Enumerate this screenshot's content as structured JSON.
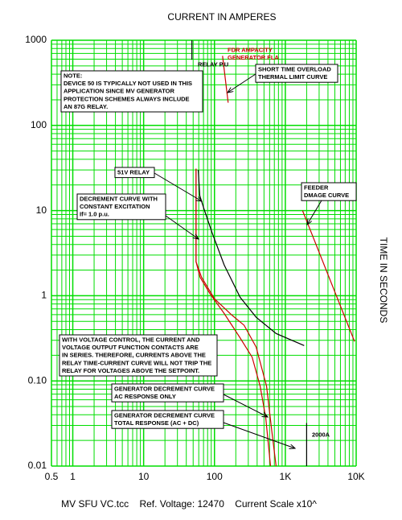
{
  "chart_data": {
    "type": "line",
    "title": "CURRENT IN AMPERES",
    "y_label": "TIME IN SECONDS",
    "footer": "MV SFU VC.tcc    Ref. Voltage: 12470    Current Scale x10^",
    "xlog": true,
    "ylog": true,
    "grid": true,
    "grid_color": "#00dd00",
    "xlim": [
      0.5,
      10000
    ],
    "ylim": [
      0.01,
      1000
    ],
    "xticks": [
      0.5,
      1,
      10,
      100,
      {
        "value": 1000,
        "label": "1K"
      },
      {
        "value": 10000,
        "label": "10K"
      }
    ],
    "yticks": [
      0.01,
      {
        "value": 0.1,
        "label": "0.10"
      },
      1,
      10,
      100,
      1000
    ],
    "series": [
      {
        "color": "#000000",
        "x": [
          59,
          62,
          71,
          92.5,
          137,
          230,
          387,
          741,
          1845
        ],
        "values": [
          30,
          15,
          10.5,
          5.5,
          2.3,
          0.96,
          0.56,
          0.36,
          0.26
        ]
      },
      {
        "color": "#cc0000",
        "x": [
          55,
          55,
          62.6,
          85.6,
          137,
          230,
          340,
          441,
          529,
          618
        ],
        "values": [
          31,
          2.5,
          1.65,
          1.07,
          0.62,
          0.32,
          0.19,
          0.087,
          0.037,
          0.01
        ]
      },
      {
        "color": "#cc0000",
        "x": [
          55,
          55,
          65.7,
          100,
          177,
          262,
          387,
          543,
          651,
          741
        ],
        "values": [
          31,
          2.5,
          1.65,
          0.92,
          0.59,
          0.45,
          0.25,
          0.087,
          0.024,
          0.01
        ]
      },
      {
        "color": "#cc0000",
        "x": [
          1750,
          9490
        ],
        "values": [
          10,
          0.29
        ]
      },
      {
        "color": "#cc0000",
        "x": [
          130,
          156
        ],
        "values": [
          656,
          185
        ]
      },
      {
        "color": "#000000",
        "x": [
          48,
          48
        ],
        "values": [
          1000,
          590
        ]
      },
      {
        "color": "#000000",
        "x": [
          2000,
          2000
        ],
        "values": [
          0.032,
          0.01
        ]
      }
    ],
    "annotations": [
      {
        "lines": [
          "NOTE:",
          "DEVICE 50 IS TYPICALLY NOT USED IN THIS",
          "APPLICATION SINCE MV GENERATOR",
          "PROTECTION SCHEMES ALWAYS INCLUDE",
          "AN 87G RELAY."
        ]
      },
      {
        "lines": [
          "SHORT TIME OVERLOAD",
          "THERMAL LIMIT CURVE"
        ]
      },
      {
        "lines": [
          "51V RELAY"
        ]
      },
      {
        "lines": [
          "DECREMENT CURVE WITH",
          "CONSTANT EXCITATION",
          "If= 1.0 p.u."
        ]
      },
      {
        "lines": [
          "FEEDER",
          "DMAGE CURVE"
        ]
      },
      {
        "lines": [
          "WITH VOLTAGE CONTROL, THE CURRENT AND",
          "VOLTAGE OUTPUT FUNCTION CONTACTS ARE",
          "IN SERIES.  THEREFORE, CURRENTS ABOVE THE",
          "RELAY TIME-CURRENT CURVE WILL NOT TRIP THE",
          "RELAY FOR VOLTAGES ABOVE THE SETPOINT."
        ]
      },
      {
        "lines": [
          "GENERATOR DECREMENT CURVE",
          "AC RESPONSE ONLY"
        ]
      },
      {
        "lines": [
          "GENERATOR DECREMENT CURVE",
          "TOTAL RESPONSE (AC + DC)"
        ]
      },
      {
        "lines": [
          "FDR AMPACITY",
          "GENERATOR FLA"
        ]
      },
      {
        "lines": [
          "RELAY P.U"
        ]
      },
      {
        "lines": [
          "2000A"
        ]
      }
    ]
  }
}
